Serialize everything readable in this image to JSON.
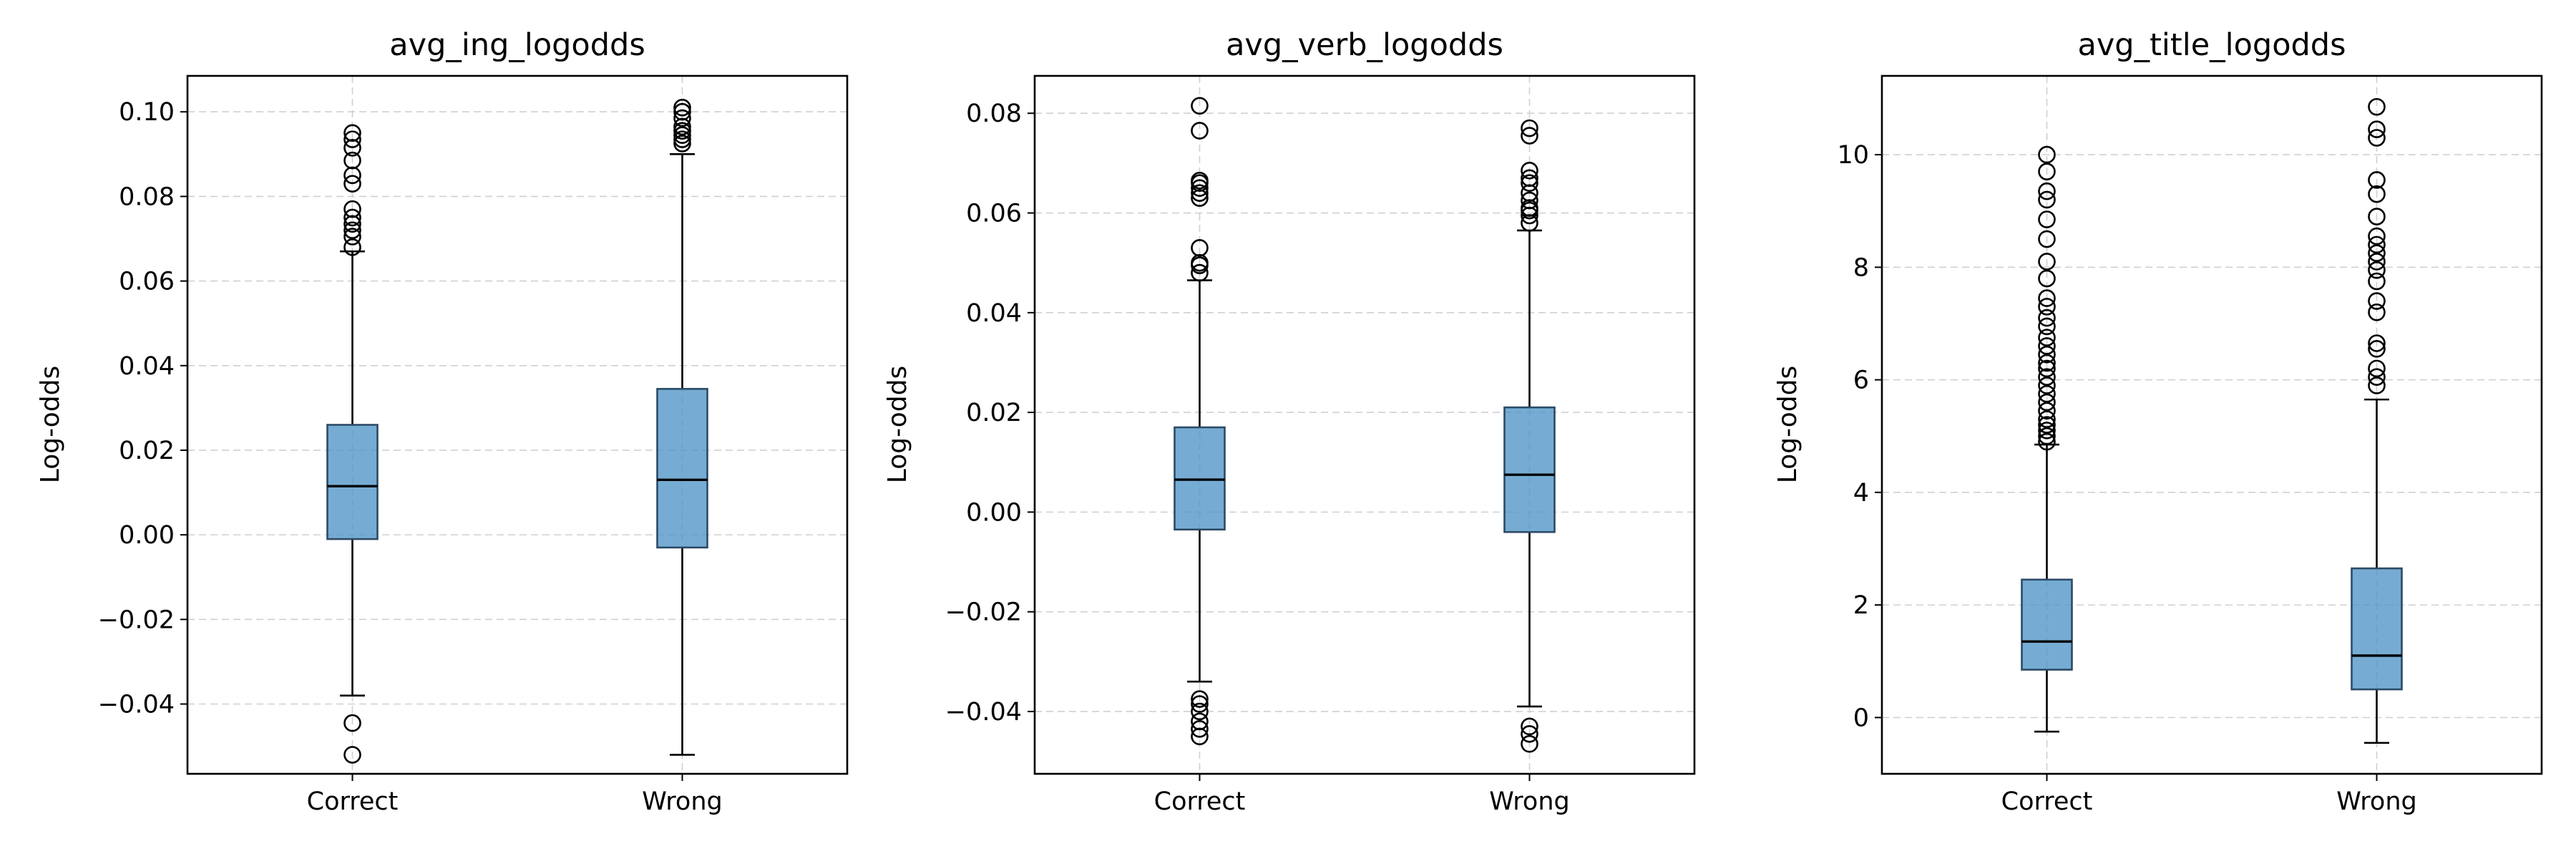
{
  "chart_data": [
    {
      "type": "box",
      "title": "avg_ing_logodds",
      "xlabel": "",
      "ylabel": "Log-odds",
      "ylim": [
        -0.0565,
        0.1085
      ],
      "yticks": [
        -0.04,
        -0.02,
        0.0,
        0.02,
        0.04,
        0.06,
        0.08,
        0.1
      ],
      "ytick_labels": [
        "−0.04",
        "−0.02",
        "0.00",
        "0.02",
        "0.04",
        "0.06",
        "0.08",
        "0.10"
      ],
      "grid": true,
      "categories": [
        "Correct",
        "Wrong"
      ],
      "boxes": [
        {
          "category": "Correct",
          "whislo": -0.038,
          "q1": -0.001,
          "med": 0.0115,
          "q3": 0.026,
          "whishi": 0.067,
          "fliers": [
            -0.052,
            -0.0445,
            0.068,
            0.0705,
            0.072,
            0.0735,
            0.075,
            0.077,
            0.083,
            0.085,
            0.0885,
            0.0915,
            0.0935,
            0.095
          ]
        },
        {
          "category": "Wrong",
          "whislo": -0.052,
          "q1": -0.003,
          "med": 0.013,
          "q3": 0.0345,
          "whishi": 0.09,
          "fliers": [
            0.0925,
            0.0935,
            0.0945,
            0.0955,
            0.0965,
            0.0985,
            0.1,
            0.101
          ]
        }
      ]
    },
    {
      "type": "box",
      "title": "avg_verb_logodds",
      "xlabel": "",
      "ylabel": "Log-odds",
      "ylim": [
        -0.0525,
        0.0875
      ],
      "yticks": [
        -0.04,
        -0.02,
        0.0,
        0.02,
        0.04,
        0.06,
        0.08
      ],
      "ytick_labels": [
        "−0.04",
        "−0.02",
        "0.00",
        "0.02",
        "0.04",
        "0.06",
        "0.08"
      ],
      "grid": true,
      "categories": [
        "Correct",
        "Wrong"
      ],
      "boxes": [
        {
          "category": "Correct",
          "whislo": -0.034,
          "q1": -0.0035,
          "med": 0.0065,
          "q3": 0.017,
          "whishi": 0.0465,
          "fliers": [
            -0.045,
            -0.0435,
            -0.042,
            -0.04,
            -0.0385,
            -0.0375,
            0.048,
            0.0495,
            0.05,
            0.053,
            0.063,
            0.064,
            0.065,
            0.066,
            0.0665,
            0.0765,
            0.0815
          ]
        },
        {
          "category": "Wrong",
          "whislo": -0.039,
          "q1": -0.004,
          "med": 0.0075,
          "q3": 0.021,
          "whishi": 0.0565,
          "fliers": [
            -0.0465,
            -0.0445,
            -0.043,
            0.058,
            0.0595,
            0.0605,
            0.061,
            0.0625,
            0.064,
            0.066,
            0.067,
            0.0685,
            0.0755,
            0.077
          ]
        }
      ]
    },
    {
      "type": "box",
      "title": "avg_title_logodds",
      "xlabel": "",
      "ylabel": "Log-odds",
      "ylim": [
        -1.0,
        11.4
      ],
      "yticks": [
        0,
        2,
        4,
        6,
        8,
        10
      ],
      "ytick_labels": [
        "0",
        "2",
        "4",
        "6",
        "8",
        "10"
      ],
      "grid": true,
      "categories": [
        "Correct",
        "Wrong"
      ],
      "boxes": [
        {
          "category": "Correct",
          "whislo": -0.25,
          "q1": 0.85,
          "med": 1.35,
          "q3": 2.45,
          "whishi": 4.85,
          "fliers": [
            4.9,
            5.0,
            5.1,
            5.2,
            5.3,
            5.45,
            5.6,
            5.75,
            5.9,
            6.05,
            6.2,
            6.3,
            6.45,
            6.6,
            6.75,
            6.95,
            7.1,
            7.3,
            7.45,
            7.8,
            8.1,
            8.5,
            8.85,
            9.2,
            9.35,
            9.7,
            10.0
          ]
        },
        {
          "category": "Wrong",
          "whislo": -0.45,
          "q1": 0.5,
          "med": 1.1,
          "q3": 2.65,
          "whishi": 5.65,
          "fliers": [
            5.9,
            6.05,
            6.2,
            6.55,
            6.65,
            7.2,
            7.4,
            7.75,
            7.95,
            8.1,
            8.25,
            8.4,
            8.55,
            8.9,
            9.3,
            9.55,
            10.3,
            10.45,
            10.85
          ]
        }
      ]
    }
  ]
}
